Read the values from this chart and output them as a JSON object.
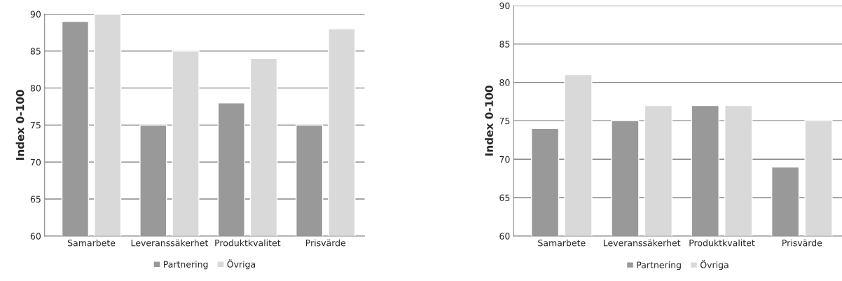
{
  "chart_data": [
    {
      "type": "bar",
      "ylabel": "Index 0-100",
      "categories": [
        "Samarbete",
        "Leveranssäkerhet",
        "Produktkvalitet",
        "Prisvärde"
      ],
      "series": [
        {
          "name": "Partnering",
          "color": "#999999",
          "values": [
            89,
            75,
            78,
            75
          ]
        },
        {
          "name": "Övriga",
          "color": "#d9d9d9",
          "values": [
            90,
            85,
            84,
            88
          ]
        }
      ],
      "ylim": [
        60,
        90
      ],
      "yticks": [
        60,
        65,
        70,
        75,
        80,
        85,
        90
      ],
      "grid": "y",
      "legend": "bottom"
    },
    {
      "type": "bar",
      "ylabel": "Index 0-100",
      "categories": [
        "Samarbete",
        "Leveranssäkerhet",
        "Produktkvalitet",
        "Prisvärde"
      ],
      "series": [
        {
          "name": "Partnering",
          "color": "#999999",
          "values": [
            74,
            75,
            77,
            69
          ]
        },
        {
          "name": "Övriga",
          "color": "#d9d9d9",
          "values": [
            81,
            77,
            77,
            75
          ]
        }
      ],
      "ylim": [
        60,
        90
      ],
      "yticks": [
        60,
        65,
        70,
        75,
        80,
        85,
        90
      ],
      "grid": "y",
      "legend": "bottom"
    }
  ]
}
